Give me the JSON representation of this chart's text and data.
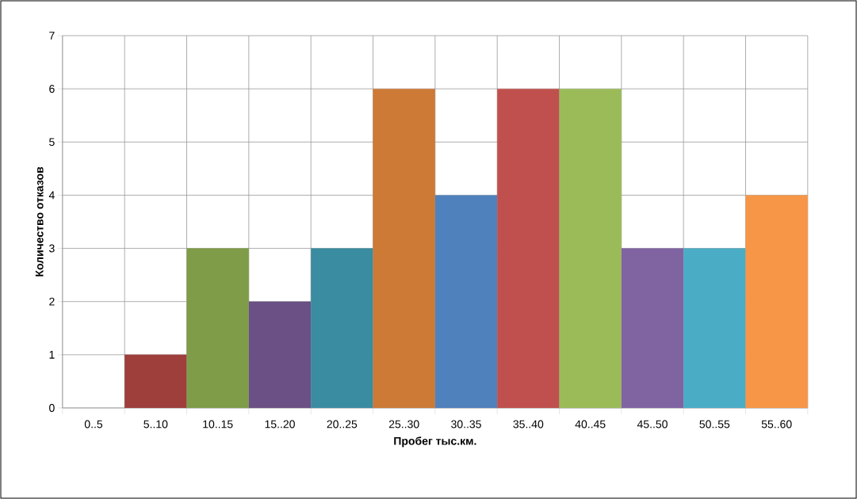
{
  "chart_data": {
    "type": "bar",
    "xlabel": "Пробег тыс.км.",
    "ylabel": "Количество отказов",
    "categories": [
      "0..5",
      "5..10",
      "10..15",
      "15..20",
      "20..25",
      "25..30",
      "30..35",
      "35..40",
      "40..45",
      "45..50",
      "50..55",
      "55..60"
    ],
    "values": [
      0,
      1,
      3,
      2,
      3,
      6,
      4,
      6,
      6,
      3,
      3,
      4
    ],
    "colors": [
      "#4f81bd",
      "#9e3f3c",
      "#7f9c48",
      "#6a5085",
      "#3a8ca0",
      "#cc7a36",
      "#4f81bd",
      "#c0504d",
      "#9bbb59",
      "#8064a2",
      "#4bacc6",
      "#f79646"
    ],
    "ylim": [
      0,
      7
    ],
    "yticks": [
      0,
      1,
      2,
      3,
      4,
      5,
      6,
      7
    ],
    "grid": true
  }
}
